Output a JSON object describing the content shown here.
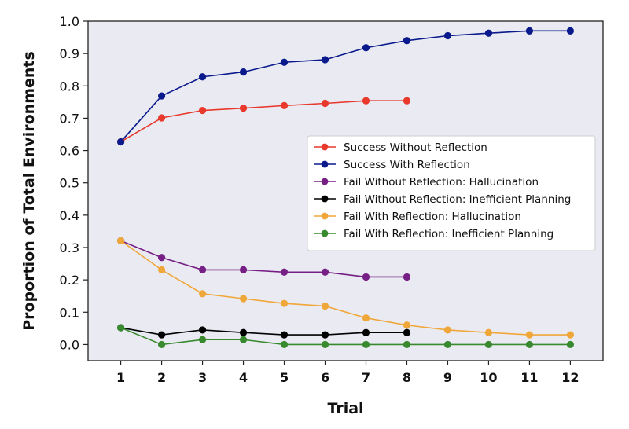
{
  "chart_data": {
    "type": "line",
    "xlabel": "Trial",
    "ylabel": "Proportion of Total Environments",
    "x_ticks": [
      1,
      2,
      3,
      4,
      5,
      6,
      7,
      8,
      9,
      10,
      11,
      12
    ],
    "y_ticks": [
      "0.0",
      "0.1",
      "0.2",
      "0.3",
      "0.4",
      "0.5",
      "0.6",
      "0.7",
      "0.8",
      "0.9",
      "1.0"
    ],
    "xlim": [
      0.2,
      12.8
    ],
    "ylim": [
      -0.05,
      1.0
    ],
    "grid": false,
    "legend_position": "center-right",
    "background_color": "#eaeaf2",
    "series": [
      {
        "name": "Success Without Reflection",
        "color": "#e8392c",
        "x": [
          1,
          2,
          3,
          4,
          5,
          6,
          7,
          8
        ],
        "y": [
          0.627,
          0.701,
          0.724,
          0.731,
          0.739,
          0.746,
          0.754,
          0.754
        ]
      },
      {
        "name": "Success With Reflection",
        "color": "#0a1a8c",
        "x": [
          1,
          2,
          3,
          4,
          5,
          6,
          7,
          8,
          9,
          10,
          11,
          12
        ],
        "y": [
          0.627,
          0.769,
          0.828,
          0.843,
          0.873,
          0.881,
          0.918,
          0.94,
          0.955,
          0.963,
          0.97,
          0.97
        ]
      },
      {
        "name": "Fail Without Reflection: Hallucination",
        "color": "#761f84",
        "x": [
          1,
          2,
          3,
          4,
          5,
          6,
          7,
          8
        ],
        "y": [
          0.321,
          0.269,
          0.231,
          0.231,
          0.224,
          0.224,
          0.209,
          0.209
        ]
      },
      {
        "name": "Fail Without Reflection: Inefficient Planning",
        "color": "#000000",
        "x": [
          1,
          2,
          3,
          4,
          5,
          6,
          7,
          8
        ],
        "y": [
          0.052,
          0.03,
          0.045,
          0.037,
          0.03,
          0.03,
          0.037,
          0.037
        ]
      },
      {
        "name": "Fail With Reflection: Hallucination",
        "color": "#f0a73a",
        "x": [
          1,
          2,
          3,
          4,
          5,
          6,
          7,
          8,
          9,
          10,
          11,
          12
        ],
        "y": [
          0.321,
          0.231,
          0.157,
          0.142,
          0.127,
          0.119,
          0.082,
          0.06,
          0.045,
          0.037,
          0.03,
          0.03
        ]
      },
      {
        "name": "Fail With Reflection: Inefficient Planning",
        "color": "#398a2e",
        "x": [
          1,
          2,
          3,
          4,
          5,
          6,
          7,
          8,
          9,
          10,
          11,
          12
        ],
        "y": [
          0.052,
          0.0,
          0.015,
          0.015,
          0.0,
          0.0,
          0.0,
          0.0,
          0.0,
          0.0,
          0.0,
          0.0
        ]
      }
    ]
  }
}
